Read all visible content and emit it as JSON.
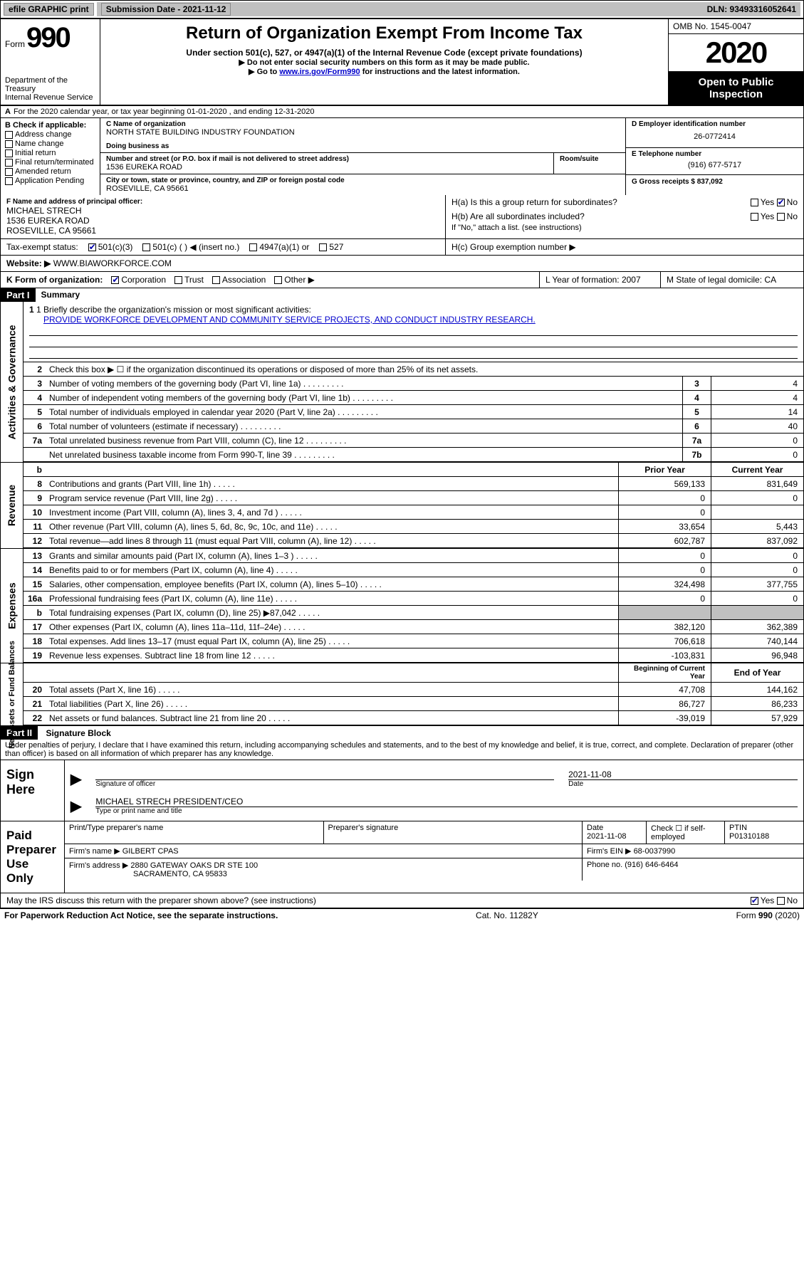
{
  "topbar": {
    "efile": "efile GRAPHIC print",
    "submission_label": "Submission Date - 2021-11-12",
    "dln_label": "DLN: 93493316052641"
  },
  "header": {
    "form_word": "Form",
    "form_num": "990",
    "dept": "Department of the Treasury\nInternal Revenue Service",
    "title": "Return of Organization Exempt From Income Tax",
    "sub": "Under section 501(c), 527, or 4947(a)(1) of the Internal Revenue Code (except private foundations)",
    "line2": "▶ Do not enter social security numbers on this form as it may be made public.",
    "line3_prefix": "▶ Go to ",
    "line3_link": "www.irs.gov/Form990",
    "line3_suffix": " for instructions and the latest information.",
    "omb": "OMB No. 1545-0047",
    "year": "2020",
    "open": "Open to Public Inspection"
  },
  "period": {
    "text": "For the 2020 calendar year, or tax year beginning 01-01-2020     , and ending 12-31-2020"
  },
  "block_b": {
    "title": "B Check if applicable:",
    "opts": [
      "Address change",
      "Name change",
      "Initial return",
      "Final return/terminated",
      "Amended return",
      "Application Pending"
    ]
  },
  "block_c": {
    "name_label": "C Name of organization",
    "name": "NORTH STATE BUILDING INDUSTRY FOUNDATION",
    "dba_label": "Doing business as",
    "addr_label": "Number and street (or P.O. box if mail is not delivered to street address)",
    "room_label": "Room/suite",
    "addr": "1536 EUREKA ROAD",
    "city_label": "City or town, state or province, country, and ZIP or foreign postal code",
    "city": "ROSEVILLE, CA  95661"
  },
  "block_d": {
    "label": "D Employer identification number",
    "val": "26-0772414"
  },
  "block_e": {
    "label": "E Telephone number",
    "val": "(916) 677-5717"
  },
  "block_g": {
    "label": "G Gross receipts $ 837,092"
  },
  "block_f": {
    "label": "F  Name and address of principal officer:",
    "name": "MICHAEL STRECH",
    "addr1": "1536 EUREKA ROAD",
    "addr2": "ROSEVILLE, CA  95661"
  },
  "block_h": {
    "a": "H(a)  Is this a group return for subordinates?",
    "b": "H(b)  Are all subordinates included?",
    "b_note": "If \"No,\" attach a list. (see instructions)",
    "c": "H(c)  Group exemption number ▶"
  },
  "tax_exempt": {
    "label": "Tax-exempt status:",
    "opts": [
      "501(c)(3)",
      "501(c) (  ) ◀ (insert no.)",
      "4947(a)(1) or",
      "527"
    ]
  },
  "website": {
    "label": "Website: ▶",
    "val": "WWW.BIAWORKFORCE.COM"
  },
  "block_k": {
    "label": "K Form of organization:",
    "opts": [
      "Corporation",
      "Trust",
      "Association",
      "Other ▶"
    ]
  },
  "block_l": {
    "label": "L Year of formation: 2007"
  },
  "block_m": {
    "label": "M State of legal domicile: CA"
  },
  "part1": {
    "header": "Part I",
    "title": "Summary",
    "line1_label": "1  Briefly describe the organization's mission or most significant activities:",
    "line1_val": "PROVIDE WORKFORCE DEVELOPMENT AND COMMUNITY SERVICE PROJECTS, AND CONDUCT INDUSTRY RESEARCH.",
    "line2": "Check this box ▶ ☐  if the organization discontinued its operations or disposed of more than 25% of its net assets.",
    "sidebar_gov": "Activities & Governance",
    "sidebar_rev": "Revenue",
    "sidebar_exp": "Expenses",
    "sidebar_net": "Net Assets or Fund Balances",
    "rows_gov": [
      {
        "n": "3",
        "t": "Number of voting members of the governing body (Part VI, line 1a)",
        "box": "3",
        "v": "4"
      },
      {
        "n": "4",
        "t": "Number of independent voting members of the governing body (Part VI, line 1b)",
        "box": "4",
        "v": "4"
      },
      {
        "n": "5",
        "t": "Total number of individuals employed in calendar year 2020 (Part V, line 2a)",
        "box": "5",
        "v": "14"
      },
      {
        "n": "6",
        "t": "Total number of volunteers (estimate if necessary)",
        "box": "6",
        "v": "40"
      },
      {
        "n": "7a",
        "t": "Total unrelated business revenue from Part VIII, column (C), line 12",
        "box": "7a",
        "v": "0"
      },
      {
        "n": "",
        "t": "Net unrelated business taxable income from Form 990-T, line 39",
        "box": "7b",
        "v": "0"
      }
    ],
    "col_hdr": {
      "n": "b",
      "prior": "Prior Year",
      "curr": "Current Year"
    },
    "rows_rev": [
      {
        "n": "8",
        "t": "Contributions and grants (Part VIII, line 1h)",
        "p": "569,133",
        "c": "831,649"
      },
      {
        "n": "9",
        "t": "Program service revenue (Part VIII, line 2g)",
        "p": "0",
        "c": "0"
      },
      {
        "n": "10",
        "t": "Investment income (Part VIII, column (A), lines 3, 4, and 7d )",
        "p": "0",
        "c": ""
      },
      {
        "n": "11",
        "t": "Other revenue (Part VIII, column (A), lines 5, 6d, 8c, 9c, 10c, and 11e)",
        "p": "33,654",
        "c": "5,443"
      },
      {
        "n": "12",
        "t": "Total revenue—add lines 8 through 11 (must equal Part VIII, column (A), line 12)",
        "p": "602,787",
        "c": "837,092"
      }
    ],
    "rows_exp": [
      {
        "n": "13",
        "t": "Grants and similar amounts paid (Part IX, column (A), lines 1–3 )",
        "p": "0",
        "c": "0"
      },
      {
        "n": "14",
        "t": "Benefits paid to or for members (Part IX, column (A), line 4)",
        "p": "0",
        "c": "0"
      },
      {
        "n": "15",
        "t": "Salaries, other compensation, employee benefits (Part IX, column (A), lines 5–10)",
        "p": "324,498",
        "c": "377,755"
      },
      {
        "n": "16a",
        "t": "Professional fundraising fees (Part IX, column (A), line 11e)",
        "p": "0",
        "c": "0"
      },
      {
        "n": "b",
        "t": "Total fundraising expenses (Part IX, column (D), line 25) ▶87,042",
        "p": "gray",
        "c": "gray"
      },
      {
        "n": "17",
        "t": "Other expenses (Part IX, column (A), lines 11a–11d, 11f–24e)",
        "p": "382,120",
        "c": "362,389"
      },
      {
        "n": "18",
        "t": "Total expenses. Add lines 13–17 (must equal Part IX, column (A), line 25)",
        "p": "706,618",
        "c": "740,144"
      },
      {
        "n": "19",
        "t": "Revenue less expenses. Subtract line 18 from line 12",
        "p": "-103,831",
        "c": "96,948"
      }
    ],
    "col_hdr2": {
      "prior": "Beginning of Current Year",
      "curr": "End of Year"
    },
    "rows_net": [
      {
        "n": "20",
        "t": "Total assets (Part X, line 16)",
        "p": "47,708",
        "c": "144,162"
      },
      {
        "n": "21",
        "t": "Total liabilities (Part X, line 26)",
        "p": "86,727",
        "c": "86,233"
      },
      {
        "n": "22",
        "t": "Net assets or fund balances. Subtract line 21 from line 20",
        "p": "-39,019",
        "c": "57,929"
      }
    ]
  },
  "part2": {
    "header": "Part II",
    "title": "Signature Block",
    "penalties": "Under penalties of perjury, I declare that I have examined this return, including accompanying schedules and statements, and to the best of my knowledge and belief, it is true, correct, and complete. Declaration of preparer (other than officer) is based on all information of which preparer has any knowledge."
  },
  "sign": {
    "left": "Sign Here",
    "sig_officer": "Signature of officer",
    "date": "2021-11-08",
    "date_label": "Date",
    "name": "MICHAEL STRECH  PRESIDENT/CEO",
    "type_label": "Type or print name and title"
  },
  "prep": {
    "left": "Paid Preparer Use Only",
    "col1": "Print/Type preparer's name",
    "col2": "Preparer's signature",
    "col3_label": "Date",
    "col3_val": "2021-11-08",
    "col4": "Check ☐ if self-employed",
    "col5_label": "PTIN",
    "col5_val": "P01310188",
    "firm_name_label": "Firm's name    ▶",
    "firm_name": "GILBERT CPAS",
    "firm_ein_label": "Firm's EIN ▶",
    "firm_ein": "68-0037990",
    "firm_addr_label": "Firm's address ▶",
    "firm_addr": "2880 GATEWAY OAKS DR STE 100",
    "firm_city": "SACRAMENTO, CA  95833",
    "phone_label": "Phone no.",
    "phone": "(916) 646-6464",
    "discuss": "May the IRS discuss this return with the preparer shown above? (see instructions)"
  },
  "footer": {
    "left": "For Paperwork Reduction Act Notice, see the separate instructions.",
    "mid": "Cat. No. 11282Y",
    "right": "Form 990 (2020)"
  }
}
